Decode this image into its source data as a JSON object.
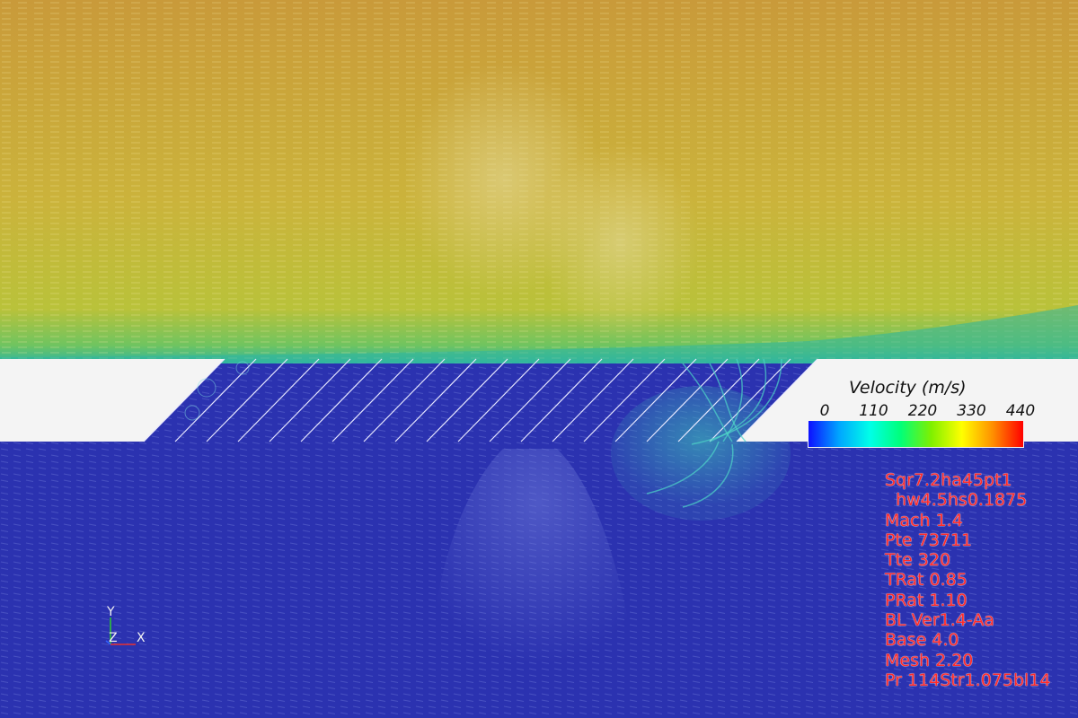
{
  "legend": {
    "title": "Velocity (m/s)",
    "ticks": [
      "0",
      "110",
      "220",
      "330",
      "440"
    ],
    "range": [
      0,
      440
    ],
    "colormap": [
      "#0d10ff",
      "#00a6ff",
      "#00ffe8",
      "#00ff7a",
      "#7ff000",
      "#ffff00",
      "#ff9000",
      "#ff0000"
    ]
  },
  "case_info": [
    "Sqr7.2ha45pt1",
    "  hw4.5hs0.1875",
    "Mach 1.4",
    "Pte 73711",
    "Tte 320",
    "TRat 0.85",
    "PRat 1.10",
    "BL Ver1.4-Aa",
    "Base 4.0",
    "Mesh 2.20",
    "Pr 114Str1.075bl14"
  ],
  "axes": {
    "y": "Y",
    "z": "Z",
    "x": "X"
  },
  "colors": {
    "freestream": "#c9b83a",
    "cavity": "#2b32b0",
    "wall": "#f4f4f4",
    "info_text": "#ff2a2a"
  }
}
